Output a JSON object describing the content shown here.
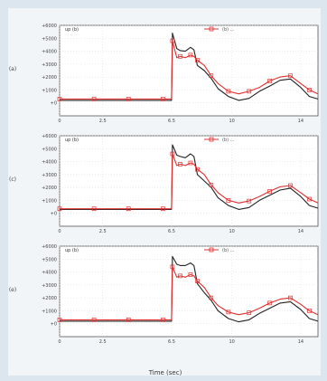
{
  "figure": {
    "background_color": "#dbe6ee",
    "inner_color": "#f1f5f8",
    "xlabel": "Time (sec)"
  },
  "chart_data": [
    {
      "type": "line",
      "panel_label": "up (b)",
      "ylabel": "(a)",
      "legend": "(b) ...",
      "xlim": [
        0,
        15
      ],
      "ylim": [
        -1000,
        6000
      ],
      "yticks": [
        6000,
        5000,
        4000,
        3000,
        2000,
        1000,
        0
      ],
      "ytick_labels": [
        "+6000",
        "+5000",
        "+4000",
        "+3000",
        "+2000",
        "+1000",
        "+0"
      ],
      "xticks": [
        0,
        2.5,
        6.5,
        10,
        14
      ],
      "xtick_labels": [
        "0",
        "2.5",
        "6.5",
        "10",
        "14"
      ],
      "series": [
        {
          "color": "#222222",
          "marker": "none",
          "x": [
            0,
            1,
            2,
            3,
            4,
            5,
            6,
            6.5,
            6.55,
            6.8,
            7,
            7.3,
            7.6,
            7.8,
            8,
            8.4,
            8.8,
            9.2,
            9.8,
            10.4,
            11,
            11.6,
            12.2,
            12.8,
            13.4,
            14,
            14.5,
            15
          ],
          "y": [
            200,
            200,
            200,
            200,
            200,
            200,
            200,
            200,
            5400,
            4200,
            4050,
            4000,
            4300,
            4100,
            2900,
            2500,
            1900,
            1100,
            500,
            200,
            350,
            900,
            1300,
            1750,
            1850,
            1200,
            500,
            300
          ]
        },
        {
          "color": "#e03030",
          "marker": "square",
          "x": [
            0,
            1,
            2,
            3,
            4,
            5,
            6,
            6.5,
            6.55,
            6.8,
            7,
            7.3,
            7.6,
            7.8,
            8,
            8.4,
            8.8,
            9.2,
            9.8,
            10.4,
            11,
            11.6,
            12.2,
            12.8,
            13.4,
            14,
            14.5,
            15
          ],
          "y": [
            300,
            300,
            300,
            300,
            300,
            300,
            300,
            300,
            4800,
            3500,
            3600,
            3500,
            3700,
            3600,
            3300,
            2900,
            2100,
            1500,
            900,
            700,
            900,
            1200,
            1700,
            2000,
            2100,
            1500,
            1000,
            700
          ]
        }
      ]
    },
    {
      "type": "line",
      "panel_label": "up (b)",
      "ylabel": "(c)",
      "legend": "(b) ...",
      "xlim": [
        0,
        15
      ],
      "ylim": [
        -1000,
        6000
      ],
      "yticks": [
        6000,
        5000,
        4000,
        3000,
        2000,
        1000,
        0
      ],
      "ytick_labels": [
        "+6000",
        "+5000",
        "+4000",
        "+3000",
        "+2000",
        "+1000",
        "+0"
      ],
      "xticks": [
        0,
        2.5,
        6.5,
        10,
        14
      ],
      "xtick_labels": [
        "0",
        "2.5",
        "6.5",
        "10",
        "14"
      ],
      "series": [
        {
          "color": "#222222",
          "marker": "none",
          "x": [
            0,
            1,
            2,
            3,
            4,
            5,
            6,
            6.5,
            6.55,
            6.8,
            7,
            7.3,
            7.6,
            7.8,
            8,
            8.4,
            8.8,
            9.2,
            9.8,
            10.4,
            11,
            11.6,
            12.2,
            12.8,
            13.4,
            14,
            14.5,
            15
          ],
          "y": [
            300,
            300,
            300,
            300,
            300,
            300,
            300,
            300,
            5300,
            4500,
            4400,
            4300,
            4600,
            4400,
            3000,
            2500,
            2000,
            1200,
            600,
            300,
            450,
            1000,
            1400,
            1800,
            1950,
            1300,
            600,
            400
          ]
        },
        {
          "color": "#e03030",
          "marker": "square",
          "x": [
            0,
            1,
            2,
            3,
            4,
            5,
            6,
            6.5,
            6.55,
            6.8,
            7,
            7.3,
            7.6,
            7.8,
            8,
            8.4,
            8.8,
            9.2,
            9.8,
            10.4,
            11,
            11.6,
            12.2,
            12.8,
            13.4,
            14,
            14.5,
            15
          ],
          "y": [
            350,
            350,
            350,
            350,
            350,
            350,
            350,
            350,
            4600,
            3700,
            3800,
            3700,
            3900,
            3800,
            3400,
            3000,
            2200,
            1600,
            1000,
            800,
            950,
            1300,
            1700,
            2050,
            2150,
            1600,
            1100,
            800
          ]
        }
      ]
    },
    {
      "type": "line",
      "panel_label": "up (b)",
      "ylabel": "(e)",
      "legend": "(b) ...",
      "xlim": [
        0,
        15
      ],
      "ylim": [
        -1000,
        6000
      ],
      "yticks": [
        6000,
        5000,
        4000,
        3000,
        2000,
        1000,
        0
      ],
      "ytick_labels": [
        "+6000",
        "+5000",
        "+4000",
        "+3000",
        "+2000",
        "+1000",
        "+0"
      ],
      "xticks": [
        0,
        2.5,
        6.5,
        10,
        14
      ],
      "xtick_labels": [
        "0",
        "2.5",
        "6.5",
        "10",
        "14"
      ],
      "series": [
        {
          "color": "#222222",
          "marker": "none",
          "x": [
            0,
            1,
            2,
            3,
            4,
            5,
            6,
            6.5,
            6.55,
            6.8,
            7,
            7.3,
            7.6,
            7.8,
            8,
            8.4,
            8.8,
            9.2,
            9.8,
            10.4,
            11,
            11.6,
            12.2,
            12.8,
            13.4,
            14,
            14.5,
            15
          ],
          "y": [
            200,
            200,
            200,
            200,
            200,
            200,
            200,
            200,
            5200,
            4600,
            4500,
            4500,
            4700,
            4500,
            3100,
            2400,
            1800,
            1000,
            400,
            150,
            300,
            800,
            1200,
            1600,
            1700,
            1100,
            400,
            200
          ]
        },
        {
          "color": "#e03030",
          "marker": "square",
          "x": [
            0,
            1,
            2,
            3,
            4,
            5,
            6,
            6.5,
            6.55,
            6.8,
            7,
            7.3,
            7.6,
            7.8,
            8,
            8.4,
            8.8,
            9.2,
            9.8,
            10.4,
            11,
            11.6,
            12.2,
            12.8,
            13.4,
            14,
            14.5,
            15
          ],
          "y": [
            300,
            300,
            300,
            300,
            300,
            300,
            300,
            300,
            4400,
            3600,
            3700,
            3600,
            3800,
            3700,
            3300,
            2800,
            2000,
            1400,
            900,
            700,
            850,
            1200,
            1600,
            1900,
            2000,
            1500,
            1000,
            700
          ]
        }
      ]
    }
  ]
}
